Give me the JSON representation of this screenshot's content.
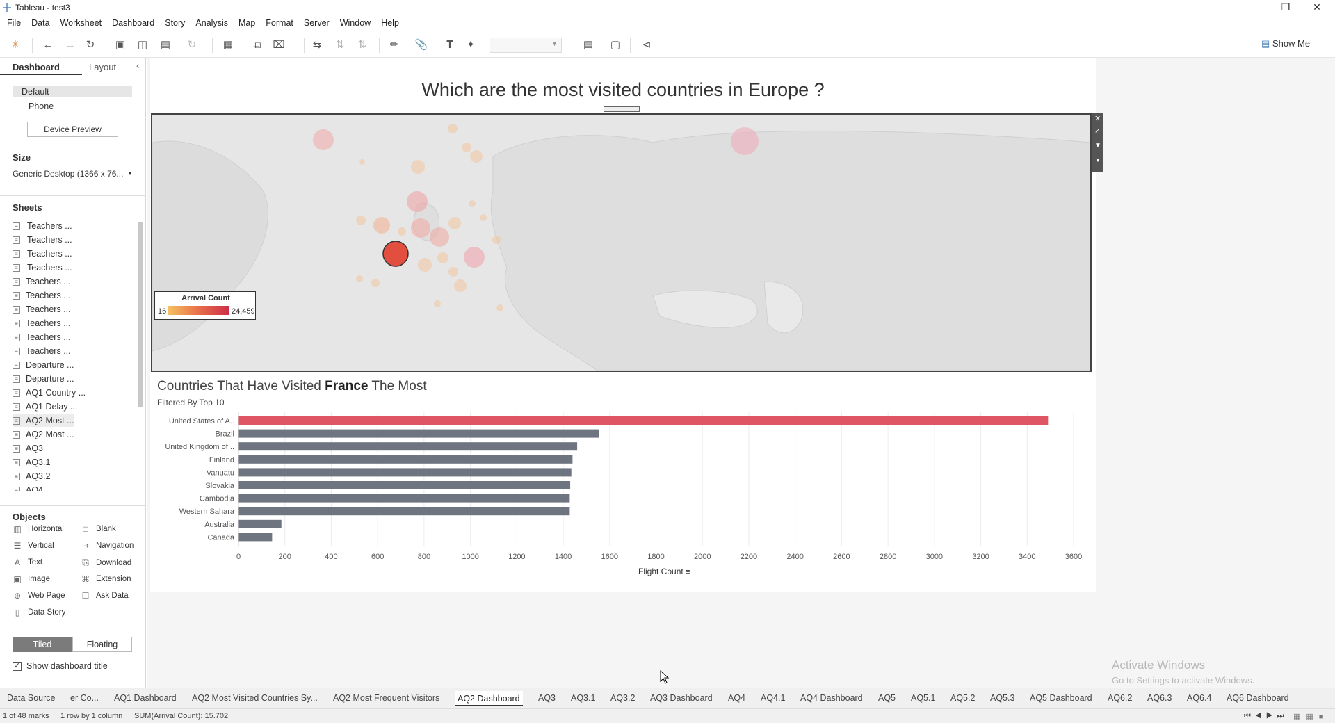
{
  "window": {
    "title": "Tableau - test3"
  },
  "menu": [
    "File",
    "Data",
    "Worksheet",
    "Dashboard",
    "Story",
    "Analysis",
    "Map",
    "Format",
    "Server",
    "Window",
    "Help"
  ],
  "toolbar": {
    "show_me": "Show Me"
  },
  "left_pane": {
    "tab_dashboard": "Dashboard",
    "tab_layout": "Layout",
    "device_default": "Default",
    "device_phone": "Phone",
    "device_preview": "Device Preview",
    "size_heading": "Size",
    "size_value": "Generic Desktop (1366 x 76...",
    "sheets_heading": "Sheets",
    "sheets": [
      "Teachers ...",
      "Teachers ...",
      "Teachers ...",
      "Teachers ...",
      "Teachers ...",
      "Teachers ...",
      "Teachers ...",
      "Teachers ...",
      "Teachers ...",
      "Teachers ...",
      "Departure ...",
      "Departure ...",
      "AQ1 Country ...",
      "AQ1 Delay ...",
      "AQ2 Most ...",
      "AQ2 Most ...",
      "AQ3",
      "AQ3.1",
      "AQ3.2",
      "AQ4"
    ],
    "objects_heading": "Objects",
    "objects": [
      {
        "label": "Horizontal",
        "icon": "horizontal-icon"
      },
      {
        "label": "Blank",
        "icon": "blank-icon"
      },
      {
        "label": "Vertical",
        "icon": "vertical-icon"
      },
      {
        "label": "Navigation",
        "icon": "navigation-icon"
      },
      {
        "label": "Text",
        "icon": "text-icon"
      },
      {
        "label": "Download",
        "icon": "download-icon"
      },
      {
        "label": "Image",
        "icon": "image-icon"
      },
      {
        "label": "Extension",
        "icon": "extension-icon"
      },
      {
        "label": "Web Page",
        "icon": "web-page-icon"
      },
      {
        "label": "Ask Data",
        "icon": "ask-data-icon"
      },
      {
        "label": "Data Story",
        "icon": "data-story-icon"
      }
    ],
    "tiled": "Tiled",
    "floating": "Floating",
    "show_title": "Show dashboard title"
  },
  "dashboard": {
    "title": "Which are the most visited countries in Europe ?",
    "legend": {
      "title": "Arrival Count",
      "min": "16",
      "max": "24.459"
    },
    "chart_title_pre": "Countries That Have Visited ",
    "chart_title_bold": "France",
    "chart_title_post": " The Most",
    "chart_subtitle": "Filtered By Top 10",
    "x_axis_label": "Flight Count"
  },
  "chart_data": {
    "type": "bar",
    "orientation": "horizontal",
    "categories": [
      "United States of A..",
      "Brazil",
      "United Kingdom of ..",
      "Finland",
      "Vanuatu",
      "Slovakia",
      "Cambodia",
      "Western Sahara",
      "Australia",
      "Canada"
    ],
    "values": [
      3490,
      1555,
      1460,
      1440,
      1435,
      1430,
      1428,
      1428,
      185,
      145
    ],
    "highlight_color": "#e05563",
    "bar_color": "#6e7480",
    "xticks": [
      0,
      200,
      400,
      600,
      800,
      1000,
      1200,
      1400,
      1600,
      1800,
      2000,
      2200,
      2400,
      2600,
      2800,
      3000,
      3200,
      3400,
      3600
    ],
    "xlim": [
      0,
      3600
    ],
    "xlabel": "Flight Count",
    "grid": true
  },
  "bottom_tabs": [
    "Data Source",
    "er Co...",
    "AQ1 Dashboard",
    "AQ2 Most Visited Countries Sy...",
    "AQ2 Most Frequent Visitors",
    "AQ2 Dashboard",
    "AQ3",
    "AQ3.1",
    "AQ3.2",
    "AQ3 Dashboard",
    "AQ4",
    "AQ4.1",
    "AQ4 Dashboard",
    "AQ5",
    "AQ5.1",
    "AQ5.2",
    "AQ5.3",
    "AQ5 Dashboard",
    "AQ6.2",
    "AQ6.3",
    "AQ6.4",
    "AQ6 Dashboard"
  ],
  "status": {
    "marks": "1 of 48 marks",
    "rows": "1 row by 1 column",
    "sum": "SUM(Arrival Count): 15.702"
  },
  "watermark": {
    "line1": "Activate Windows",
    "line2": "Go to Settings to activate Windows."
  }
}
